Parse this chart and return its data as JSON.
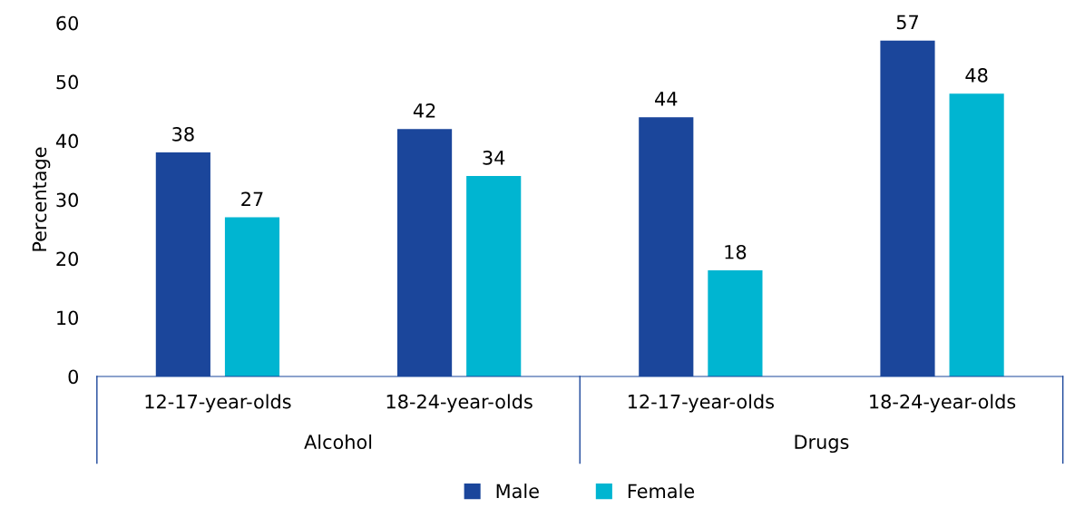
{
  "chart_data": {
    "type": "bar",
    "ylabel": "Percentage",
    "categories": [
      "12-17-year-olds",
      "18-24-year-olds",
      "12-17-year-olds",
      "18-24-year-olds"
    ],
    "annotations": [
      "Alcohol",
      "Drugs"
    ],
    "series": [
      {
        "name": "Male",
        "color": "#1b469b",
        "values": [
          38,
          42,
          44,
          57
        ]
      },
      {
        "name": "Female",
        "color": "#00b5d1",
        "values": [
          27,
          34,
          18,
          48
        ]
      }
    ],
    "ylim": [
      0,
      60
    ],
    "yticks": [
      0,
      10,
      20,
      30,
      40,
      50,
      60
    ],
    "data_labels": true,
    "grid": false,
    "legend": "bottom"
  }
}
